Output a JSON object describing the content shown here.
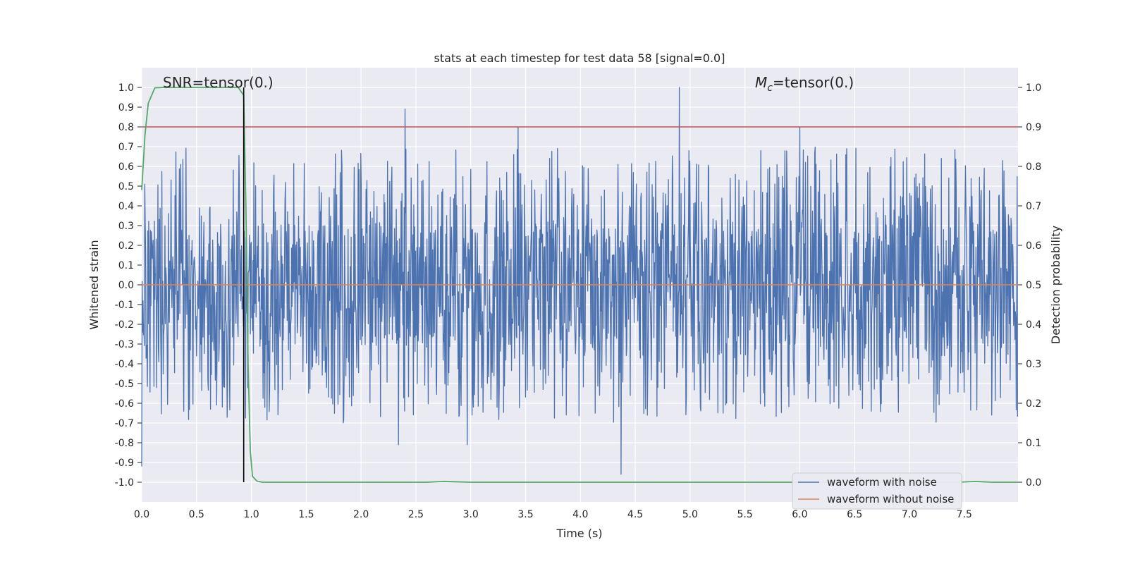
{
  "chart_data": {
    "type": "line",
    "title": "stats at each timestep for test data 58 [signal=0.0]",
    "xlabel": "Time (s)",
    "ylabel_left": "Whitened strain",
    "ylabel_right": "Detection probability",
    "xlim": [
      0.0,
      7.99
    ],
    "ylim_left": [
      -1.1,
      1.1
    ],
    "ylim_right": [
      -0.05,
      1.05
    ],
    "grid": true,
    "x_ticks": [
      0.0,
      0.5,
      1.0,
      1.5,
      2.0,
      2.5,
      3.0,
      3.5,
      4.0,
      4.5,
      5.0,
      5.5,
      6.0,
      6.5,
      7.0,
      7.5
    ],
    "x_tick_labels": [
      "0.0",
      "0.5",
      "1.0",
      "1.5",
      "2.0",
      "2.5",
      "3.0",
      "3.5",
      "4.0",
      "4.5",
      "5.0",
      "5.5",
      "6.0",
      "6.5",
      "7.0",
      "7.5"
    ],
    "y_left_ticks": [
      1.0,
      0.9,
      0.8,
      0.7,
      0.6,
      0.5,
      0.4,
      0.3,
      0.2,
      0.1,
      0.0,
      -0.1,
      -0.2,
      -0.3,
      -0.4,
      -0.5,
      -0.6,
      -0.7,
      -0.8,
      -0.9,
      -1.0
    ],
    "y_left_tick_labels": [
      "1.0",
      "0.9",
      "0.8",
      "0.7",
      "0.6",
      "0.5",
      "0.4",
      "0.3",
      "0.2",
      "0.1",
      "0.0",
      "-0.1",
      "-0.2",
      "-0.3",
      "-0.4",
      "-0.5",
      "-0.6",
      "-0.7",
      "-0.8",
      "-0.9",
      "-1.0"
    ],
    "y_right_ticks": [
      1.0,
      0.9,
      0.8,
      0.7,
      0.6,
      0.5,
      0.4,
      0.3,
      0.2,
      0.1,
      0.0
    ],
    "y_right_tick_labels": [
      "1.0",
      "0.9",
      "0.8",
      "0.7",
      "0.6",
      "0.5",
      "0.4",
      "0.3",
      "0.2",
      "0.1",
      "0.0"
    ],
    "annotations": {
      "snr": "SNR=tensor(0.)",
      "mc_symbol": "M",
      "mc_subscript": "c",
      "mc_value": "=tensor(0.)"
    },
    "threshold_line": {
      "axis": "right",
      "value": 0.9,
      "color": "#c44e52"
    },
    "vertical_marker": {
      "x": 0.93,
      "color": "#000000"
    },
    "series": [
      {
        "name": "waveform with noise",
        "axis": "left",
        "color": "#4c72b0",
        "kind": "noise",
        "sample_count": 2000,
        "core_amplitude": 0.26,
        "typical_peak": 0.5,
        "extremes": [
          {
            "x": 0.0,
            "y": -0.92
          },
          {
            "x": 2.34,
            "y": -0.81
          },
          {
            "x": 2.4,
            "y": 0.89
          },
          {
            "x": 2.97,
            "y": -0.81
          },
          {
            "x": 3.43,
            "y": 0.8
          },
          {
            "x": 4.37,
            "y": -0.96
          },
          {
            "x": 4.9,
            "y": 1.0
          },
          {
            "x": 6.0,
            "y": 0.8
          }
        ]
      },
      {
        "name": "waveform without noise",
        "axis": "left",
        "color": "#dd8452",
        "x": [
          0.0,
          7.99
        ],
        "y": [
          0.0,
          0.0
        ]
      },
      {
        "name": "detection probability",
        "axis": "right",
        "color": "#55a868",
        "x": [
          0.0,
          0.03,
          0.06,
          0.12,
          0.2,
          0.5,
          0.88,
          0.93,
          0.95,
          0.97,
          0.99,
          1.01,
          1.05,
          1.1,
          2.0,
          2.6,
          2.75,
          3.0,
          4.0,
          5.0,
          7.0,
          7.45,
          7.6,
          7.75,
          7.99
        ],
        "y": [
          0.74,
          0.88,
          0.96,
          0.999,
          1.0,
          1.0,
          1.0,
          0.98,
          0.7,
          0.3,
          0.08,
          0.015,
          0.003,
          0.0,
          0.0,
          0.0,
          0.002,
          0.0,
          0.0,
          0.0,
          0.0,
          0.0,
          0.002,
          0.0,
          0.0
        ]
      }
    ],
    "legend": {
      "position": "lower-right",
      "entries": [
        {
          "label": "waveform with noise",
          "color": "#4c72b0"
        },
        {
          "label": "waveform without noise",
          "color": "#dd8452"
        }
      ]
    }
  }
}
